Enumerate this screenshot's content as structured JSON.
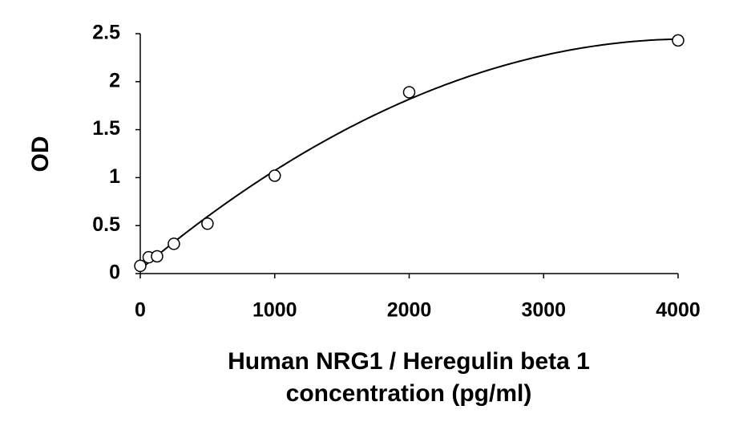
{
  "chart_data": {
    "type": "scatter",
    "xlabel": [
      "Human NRG1 / Heregulin beta 1",
      "concentration (pg/ml)"
    ],
    "ylabel": "OD",
    "x": [
      0,
      62.5,
      125,
      250,
      500,
      1000,
      2000,
      4000
    ],
    "values": [
      0.08,
      0.17,
      0.18,
      0.31,
      0.52,
      1.02,
      1.89,
      2.43
    ],
    "color": "#000000",
    "trendline": "polynomial",
    "trendline_order": 2,
    "xlim": [
      0,
      4000
    ],
    "xticks": [
      0,
      1000,
      2000,
      3000,
      4000
    ],
    "ylim": [
      0,
      2.5
    ],
    "yticks": [
      0,
      0.5,
      1,
      1.5,
      2,
      2.5
    ],
    "grid": false
  }
}
